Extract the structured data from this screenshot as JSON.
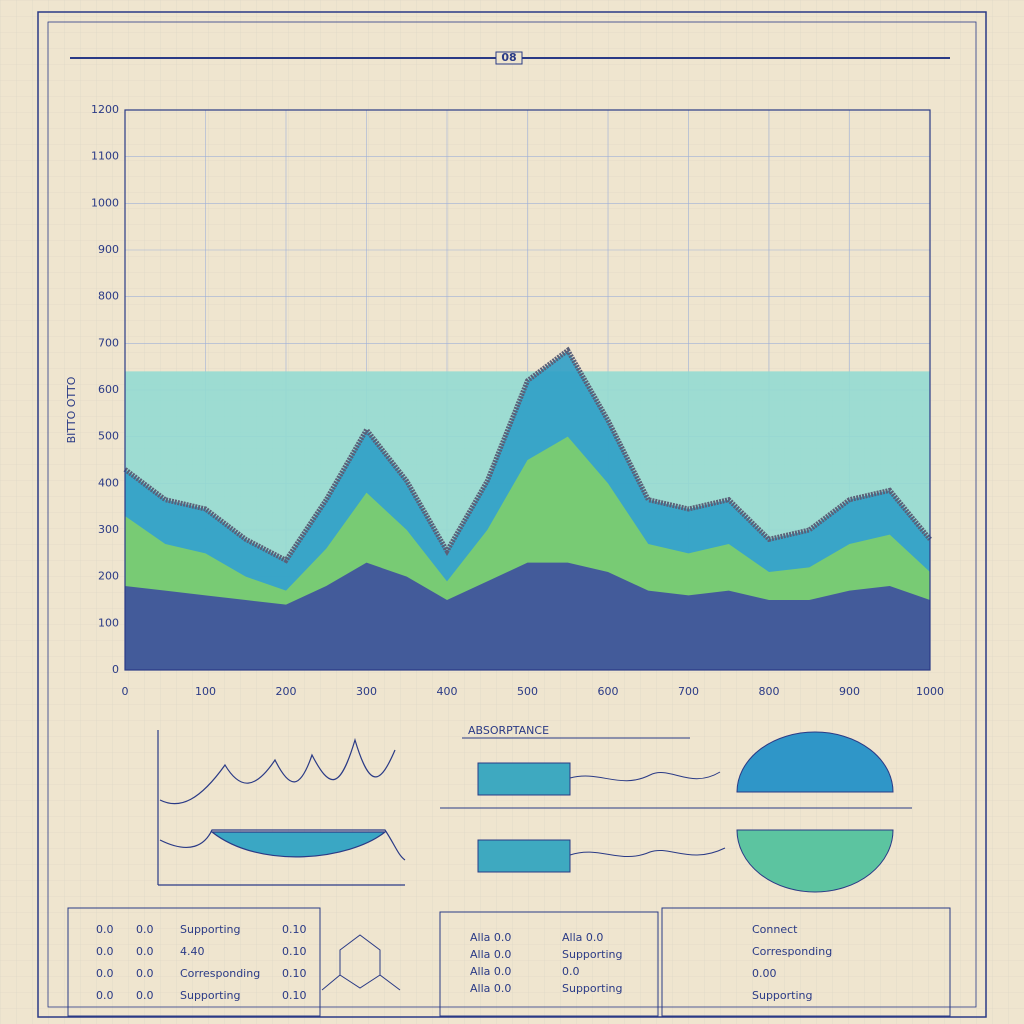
{
  "chart_data": {
    "type": "area",
    "title": "08",
    "y_label": "BITTO OTTO",
    "x": [
      0,
      50,
      100,
      150,
      200,
      250,
      300,
      350,
      400,
      450,
      500,
      550,
      600,
      650,
      700,
      750,
      800,
      850,
      900,
      950,
      1000
    ],
    "series": [
      {
        "color": "#93dad2",
        "values": [
          640,
          640,
          640,
          640,
          640,
          640,
          640,
          640,
          640,
          640,
          640,
          640,
          640,
          640,
          640,
          640,
          640,
          640,
          640,
          640,
          640
        ]
      },
      {
        "color": "#2f9fc6",
        "values": [
          430,
          365,
          345,
          280,
          235,
          365,
          515,
          405,
          255,
          405,
          620,
          685,
          535,
          365,
          345,
          365,
          280,
          300,
          365,
          385,
          280
        ]
      },
      {
        "color": "#7fcf6a",
        "values": [
          330,
          270,
          250,
          200,
          170,
          260,
          380,
          300,
          190,
          300,
          450,
          500,
          400,
          270,
          250,
          270,
          210,
          220,
          270,
          290,
          210
        ]
      },
      {
        "color": "#3d4f9e",
        "values": [
          180,
          170,
          160,
          150,
          140,
          180,
          230,
          200,
          150,
          190,
          230,
          230,
          210,
          170,
          160,
          170,
          150,
          150,
          170,
          180,
          150
        ]
      }
    ],
    "line_color": "#5a6078",
    "xlim": [
      0,
      1000
    ],
    "xticks": [
      0,
      100,
      200,
      300,
      400,
      500,
      600,
      700,
      800,
      900,
      1000
    ],
    "ylim": [
      0,
      1200
    ],
    "yticks": [
      0,
      100,
      200,
      300,
      400,
      500,
      600,
      700,
      800,
      900,
      1000,
      1100,
      1200
    ],
    "grid": true
  },
  "panels": {
    "absorbance_label": "ABSORPTANCE",
    "legend_left": [
      [
        "0.0",
        "0.0",
        "Supporting",
        "0.10"
      ],
      [
        "0.0",
        "0.0",
        "4.40",
        "0.10"
      ],
      [
        "0.0",
        "0.0",
        "Corresponding",
        "0.10"
      ],
      [
        "0.0",
        "0.0",
        "Supporting",
        "0.10"
      ]
    ],
    "legend_mid": [
      [
        "Alla 0.0",
        "Alla 0.0"
      ],
      [
        "Alla 0.0",
        "Supporting"
      ],
      [
        "Alla 0.0",
        "0.0"
      ],
      [
        "Alla 0.0",
        "Supporting"
      ]
    ],
    "legend_right": [
      "Connect",
      "Corresponding",
      "0.00",
      "Supporting"
    ]
  }
}
